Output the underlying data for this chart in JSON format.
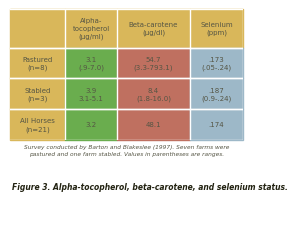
{
  "header_bg": "#D9B75A",
  "row_label_bg": "#D9B75A",
  "green_bg": "#6AAD4E",
  "red_bg": "#BF7060",
  "blue_bg": "#9DB8C8",
  "fig_bg": "#FFFFFF",
  "col_headers": [
    "Alpha-\ntocopherol\n(μg/ml)",
    "Beta-carotene\n(μg/dl)",
    "Selenium\n(ppm)"
  ],
  "row_labels": [
    "Pastured\n(n=8)",
    "Stabled\n(n=3)",
    "All Horses\n(n=21)"
  ],
  "cell_data": [
    [
      "3.1\n(.9-7.0)",
      "54.7\n(3.3-793.1)",
      ".173\n(.05-.24)"
    ],
    [
      "3.9\n3.1-5.1",
      "8.4\n(1.8-16.0)",
      ".187\n(0.9-.24)"
    ],
    [
      "3.2",
      "48.1",
      ".174"
    ]
  ],
  "caption": "Survey conducted by Barton and Blakeslee (1997). Seven farms were\npastured and one farm stabled. Values in parentheses are ranges.",
  "figure_label": "Figure 3. Alpha-tocopherol, beta-carotene, and selenium status.",
  "text_color": "#555544",
  "sep_color": "#FFFFFF",
  "cell_fontsize": 5.0,
  "header_fontsize": 5.0,
  "caption_fontsize": 4.2,
  "figure_fontsize": 5.5
}
